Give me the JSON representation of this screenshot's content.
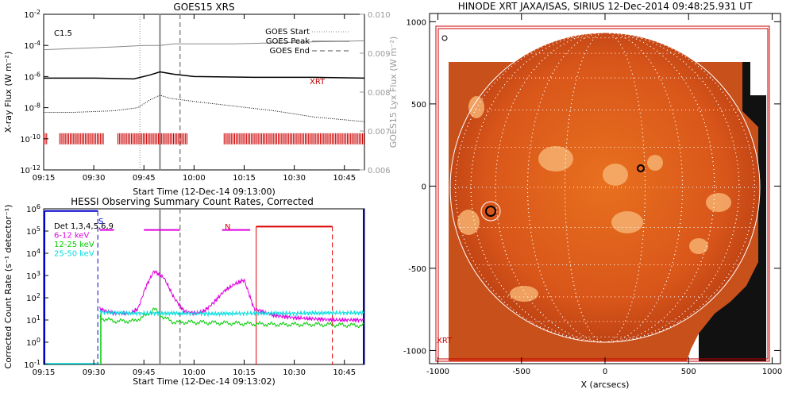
{
  "chart_data": [
    {
      "type": "line",
      "title": "GOES15 XRS",
      "xlabel": "Start Time (12-Dec-14 09:13:00)",
      "ylabel": "X-ray Flux (W m⁻²)",
      "ylabel_right": "GOES15 Lyx Flux (W m⁻²)",
      "xlim": [
        9.25,
        10.85
      ],
      "ylim_log": [
        -12,
        -2
      ],
      "y2lim": [
        0.006,
        0.01
      ],
      "x_ticks": [
        {
          "v": 9.25,
          "t": "09:15"
        },
        {
          "v": 9.5,
          "t": "09:30"
        },
        {
          "v": 9.75,
          "t": "09:45"
        },
        {
          "v": 10.0,
          "t": "10:00"
        },
        {
          "v": 10.25,
          "t": "10:15"
        },
        {
          "v": 10.5,
          "t": "10:30"
        },
        {
          "v": 10.75,
          "t": "10:45"
        }
      ],
      "y_ticks": [
        {
          "v": -12,
          "t": "10",
          "e": "-12"
        },
        {
          "v": -10,
          "t": "10",
          "e": "-10"
        },
        {
          "v": -8,
          "t": "10",
          "e": "-8"
        },
        {
          "v": -6,
          "t": "10",
          "e": "-6"
        },
        {
          "v": -4,
          "t": "10",
          "e": "-4"
        },
        {
          "v": -2,
          "t": "10",
          "e": "-2"
        }
      ],
      "y2_ticks": [
        "0.006",
        "0.007",
        "0.008",
        "0.009",
        "0.010"
      ],
      "class_label": "C1.5",
      "xrt_label": "XRT",
      "legend": [
        "GOES Start",
        "GOES Peak",
        "GOES End"
      ],
      "lines": {
        "start": 9.73,
        "peak": 9.83,
        "end": 9.93
      },
      "series": [
        {
          "id": "lyx",
          "color": "#888888",
          "x": [
            9.2,
            9.4,
            9.6,
            9.75,
            9.83,
            9.9,
            10.2,
            10.5,
            10.85
          ],
          "y": [
            -4.3,
            -4.2,
            -4.1,
            -4.0,
            -4.0,
            -3.9,
            -3.9,
            -3.8,
            -3.7
          ]
        },
        {
          "id": "long",
          "color": "#000000",
          "x": [
            9.2,
            9.5,
            9.7,
            9.78,
            9.83,
            9.9,
            10.0,
            10.3,
            10.6,
            10.85
          ],
          "y": [
            -6.1,
            -6.1,
            -6.15,
            -5.9,
            -5.7,
            -5.85,
            -6.0,
            -6.05,
            -6.05,
            -6.1
          ]
        },
        {
          "id": "short",
          "color": "#000000",
          "dotted": true,
          "x": [
            9.2,
            9.4,
            9.6,
            9.72,
            9.78,
            9.83,
            9.88,
            10.0,
            10.2,
            10.4,
            10.6,
            10.85
          ],
          "y": [
            -8.3,
            -8.3,
            -8.2,
            -8.0,
            -7.5,
            -7.2,
            -7.4,
            -7.6,
            -7.9,
            -8.2,
            -8.6,
            -8.9
          ]
        }
      ],
      "xrt_ranges": [
        [
          9.25,
          9.27
        ],
        [
          9.33,
          9.55
        ],
        [
          9.62,
          9.97
        ],
        [
          10.15,
          10.85
        ]
      ]
    },
    {
      "type": "line",
      "title": "HESSI Observing Summary Count Rates, Corrected",
      "xlabel": "Start Time (12-Dec-14 09:13:02)",
      "ylabel": "Corrected Count Rate (s⁻¹ detector⁻¹)",
      "xlim": [
        9.25,
        10.85
      ],
      "ylim_log": [
        -1,
        6
      ],
      "x_ticks": [
        {
          "v": 9.25,
          "t": "09:15"
        },
        {
          "v": 9.5,
          "t": "09:30"
        },
        {
          "v": 9.75,
          "t": "09:45"
        },
        {
          "v": 10.0,
          "t": "10:00"
        },
        {
          "v": 10.25,
          "t": "10:15"
        },
        {
          "v": 10.5,
          "t": "10:30"
        },
        {
          "v": 10.75,
          "t": "10:45"
        }
      ],
      "y_ticks": [
        {
          "v": -1,
          "t": "10",
          "e": "-1"
        },
        {
          "v": 0,
          "t": "10",
          "e": "0"
        },
        {
          "v": 1,
          "t": "10",
          "e": "1"
        },
        {
          "v": 2,
          "t": "10",
          "e": "2"
        },
        {
          "v": 3,
          "t": "10",
          "e": "3"
        },
        {
          "v": 4,
          "t": "10",
          "e": "4"
        },
        {
          "v": 5,
          "t": "10",
          "e": "5"
        },
        {
          "v": 6,
          "t": "10",
          "e": "6"
        }
      ],
      "legend": [
        {
          "label": "Det 1,3,4,5,6,9",
          "color": "#000000"
        },
        {
          "label": "6-12 keV",
          "color": "#e000e0"
        },
        {
          "label": "12-25 keV",
          "color": "#00cc00"
        },
        {
          "label": "25-50 keV",
          "color": "#00dddd"
        }
      ],
      "s_label": "S",
      "n_label": "N",
      "series": [
        {
          "name": "6-12 keV",
          "color": "#e000e0",
          "x": [
            9.53,
            9.6,
            9.68,
            9.72,
            9.76,
            9.8,
            9.85,
            9.9,
            9.95,
            10.0,
            10.05,
            10.1,
            10.15,
            10.2,
            10.25,
            10.3,
            10.4,
            10.5,
            10.6,
            10.7,
            10.85
          ],
          "y": [
            1.5,
            1.3,
            1.3,
            1.5,
            2.5,
            3.2,
            2.9,
            2.0,
            1.4,
            1.3,
            1.4,
            1.8,
            2.3,
            2.6,
            2.8,
            1.5,
            1.2,
            1.1,
            1.05,
            1.0,
            1.0
          ]
        },
        {
          "name": "12-25 keV",
          "color": "#00cc00",
          "x": [
            9.53,
            9.6,
            9.7,
            9.76,
            9.8,
            9.85,
            9.9,
            10.0,
            10.2,
            10.4,
            10.6,
            10.85
          ],
          "y": [
            1.1,
            0.95,
            0.95,
            1.2,
            1.5,
            1.1,
            0.9,
            0.9,
            0.85,
            0.8,
            0.8,
            0.75
          ]
        },
        {
          "name": "25-50 keV",
          "color": "#00dddd",
          "x": [
            9.53,
            9.7,
            9.9,
            10.1,
            10.3,
            10.5,
            10.7,
            10.85
          ],
          "y": [
            1.35,
            1.3,
            1.3,
            1.28,
            1.3,
            1.3,
            1.32,
            1.32
          ]
        }
      ],
      "vlines": {
        "blue_dashed": 9.52,
        "gray_solid": 9.83,
        "gray_dashed": 9.93,
        "red_solid": 10.31,
        "red_dashed": 10.69
      },
      "magenta_bars": [
        [
          9.53,
          9.6
        ],
        [
          9.75,
          9.93
        ],
        [
          10.14,
          10.28
        ]
      ],
      "red_bar": [
        10.31,
        10.69
      ]
    },
    {
      "type": "image",
      "title": "HINODE XRT JAXA/ISAS, SIRIUS 12-Dec-2014 09:48:25.931 UT",
      "xlabel": "X (arcsecs)",
      "xlim": [
        -1050,
        1050
      ],
      "ylim": [
        -1080,
        1050
      ],
      "x_ticks": [
        -1000,
        -500,
        0,
        500,
        1000
      ],
      "y_ticks": [
        1000,
        500,
        0,
        -500,
        -1000
      ],
      "xrt_label": "XRT"
    }
  ]
}
